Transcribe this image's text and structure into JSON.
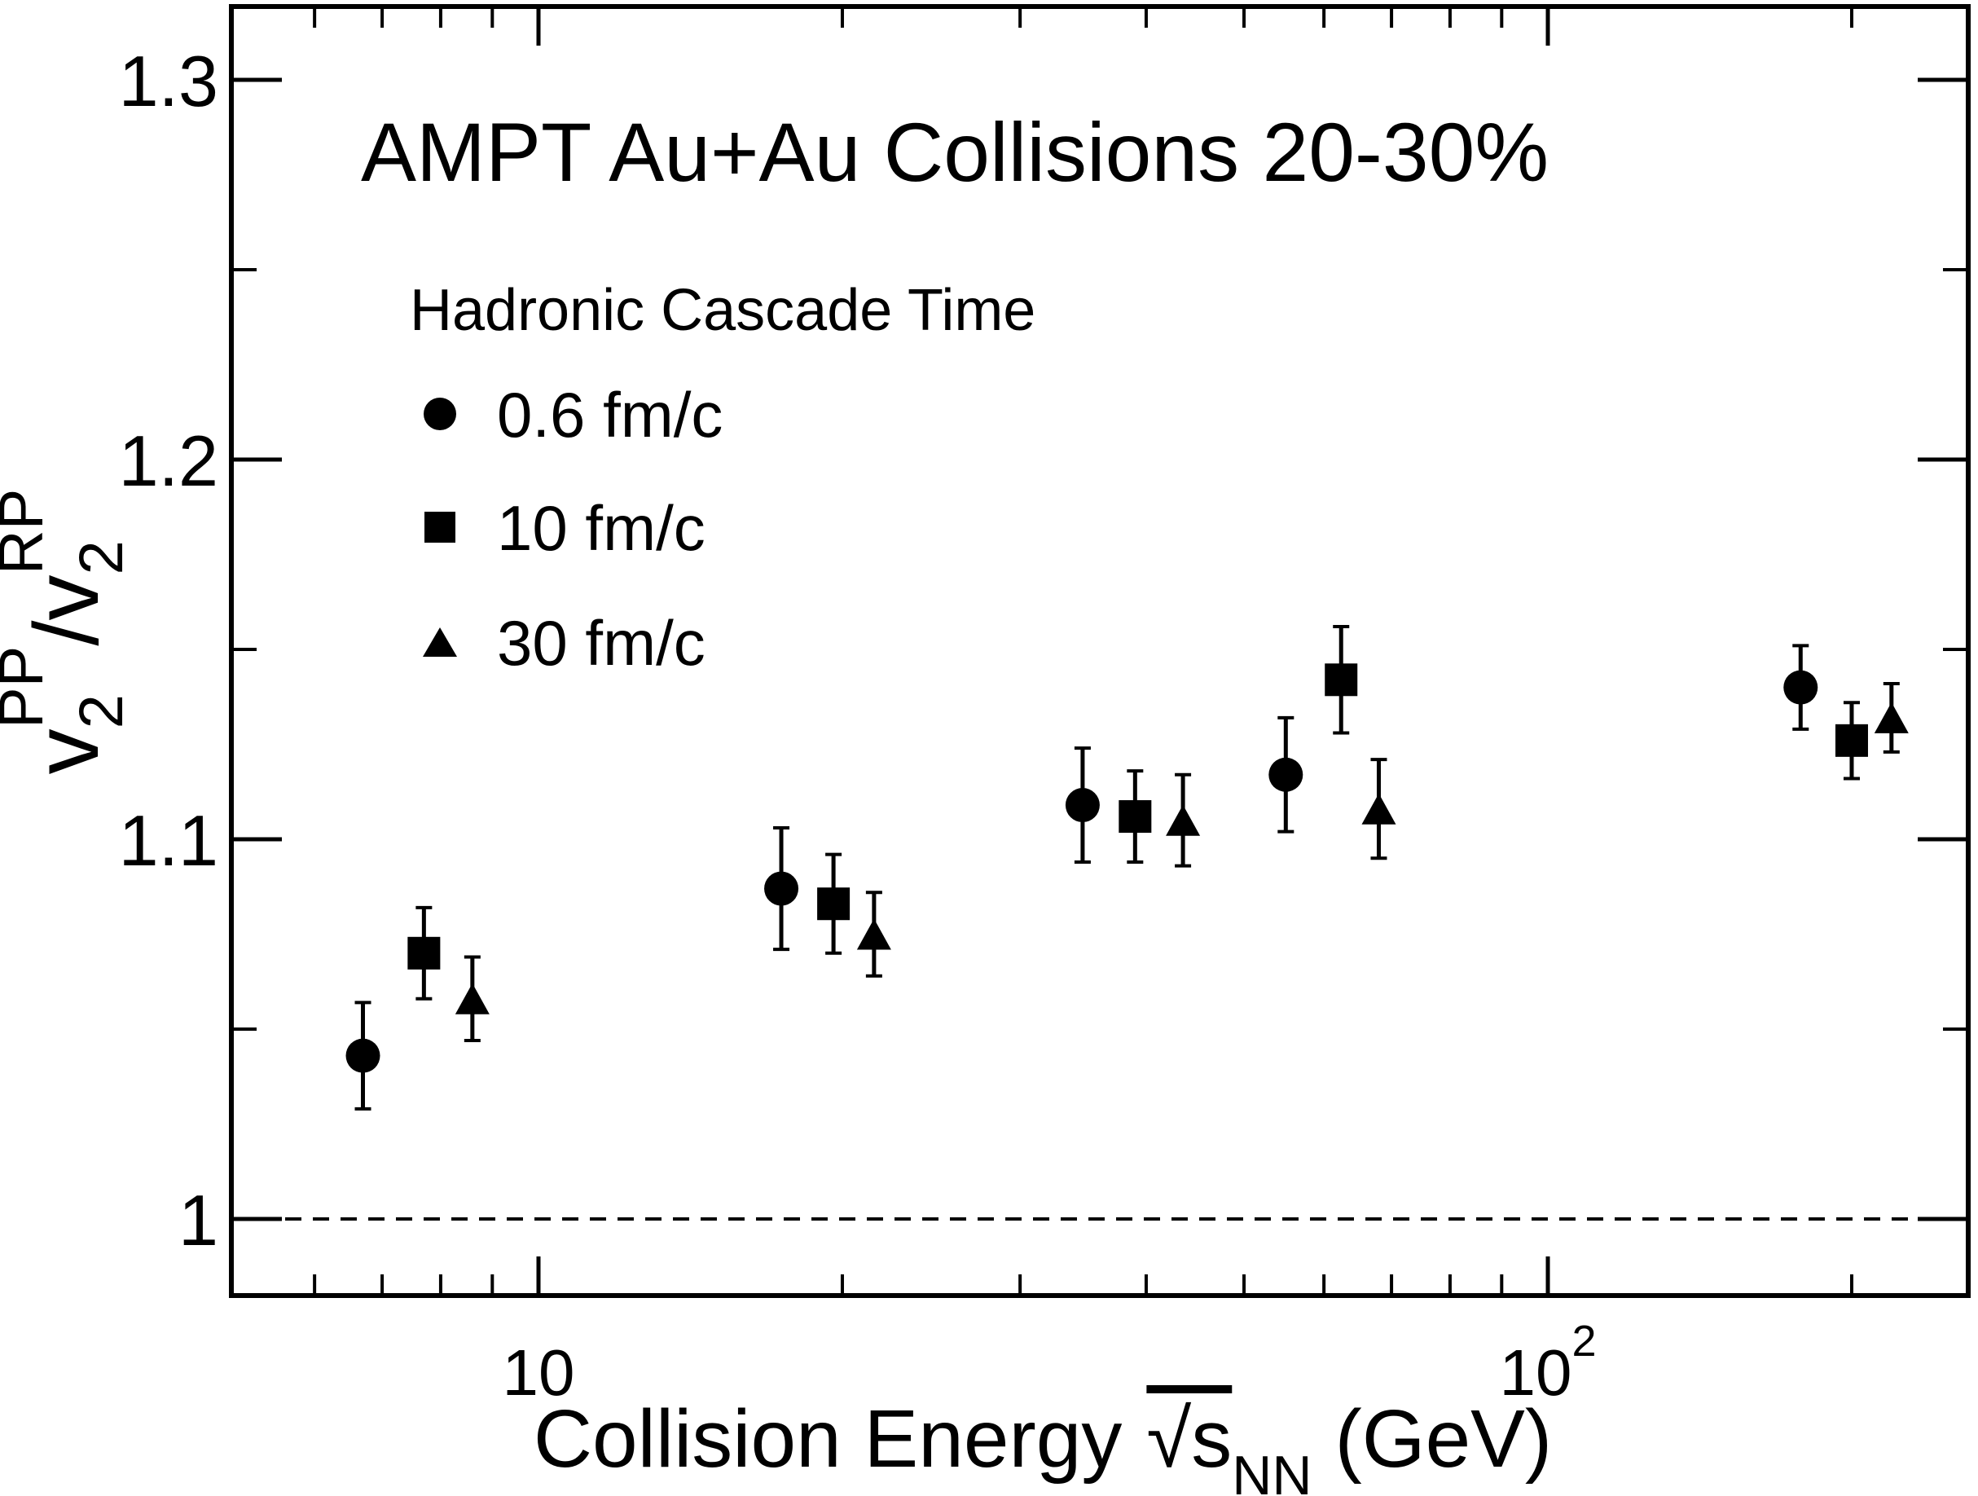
{
  "figure": {
    "title": "AMPT Au+Au Collisions 20-30%",
    "background_color": "#ffffff",
    "line_color": "#000000"
  },
  "legend": {
    "title": "Hadronic Cascade Time",
    "entries": [
      {
        "marker": "circle-icon",
        "label": "0.6 fm/c"
      },
      {
        "marker": "square-icon",
        "label": "10 fm/c"
      },
      {
        "marker": "triangle-icon",
        "label": "30 fm/c"
      }
    ]
  },
  "axes": {
    "x": {
      "title": "Collision Energy",
      "title_symbol": "√s",
      "title_sub": "NN",
      "title_unit": "(GeV)",
      "scale": "log",
      "range": [
        4.95,
        262
      ],
      "major_ticks": [
        {
          "value": 10,
          "label": "10",
          "exp": ""
        },
        {
          "value": 100,
          "label": "10",
          "exp": "2"
        }
      ],
      "minor_ticks": [
        6,
        7,
        8,
        9,
        20,
        30,
        40,
        50,
        60,
        70,
        80,
        90,
        200
      ]
    },
    "y": {
      "title_parts": [
        "v",
        "2",
        "PP",
        "/v",
        "2",
        "RP"
      ],
      "scale": "linear",
      "range": [
        0.98,
        1.319
      ],
      "major_ticks": [
        {
          "value": 1.0,
          "label": "1"
        },
        {
          "value": 1.1,
          "label": "1.1"
        },
        {
          "value": 1.2,
          "label": "1.2"
        },
        {
          "value": 1.3,
          "label": "1.3"
        }
      ],
      "minor_ticks": [
        1.05,
        1.15,
        1.25
      ]
    }
  },
  "reference_line": {
    "y": 1.0,
    "style": "dashed"
  },
  "chart_data": {
    "type": "scatter",
    "title": "AMPT Au+Au Collisions 20-30%",
    "xlabel": "Collision Energy sqrt(s_NN) (GeV)",
    "ylabel": "v2^PP / v2^RP",
    "x_scale": "log",
    "xlim": [
      4.95,
      262
    ],
    "ylim": [
      0.98,
      1.319
    ],
    "grid": false,
    "legend_position": "upper-left-inside",
    "reference_line_y": 1.0,
    "energies_nominal": [
      7.7,
      19.6,
      39,
      62.4,
      200
    ],
    "series": [
      {
        "name": "0.6 fm/c",
        "marker": "circle",
        "x": [
          6.7,
          17.4,
          34.6,
          55.0,
          178
        ],
        "y": [
          1.043,
          1.087,
          1.109,
          1.117,
          1.14
        ],
        "yerr": [
          0.014,
          0.016,
          0.015,
          0.015,
          0.011
        ]
      },
      {
        "name": "10 fm/c",
        "marker": "square",
        "x": [
          7.7,
          19.6,
          39.0,
          62.4,
          200
        ],
        "y": [
          1.07,
          1.083,
          1.106,
          1.142,
          1.126
        ],
        "yerr": [
          0.012,
          0.013,
          0.012,
          0.014,
          0.01
        ]
      },
      {
        "name": "30 fm/c",
        "marker": "triangle",
        "x": [
          8.6,
          21.5,
          43.5,
          68.0,
          219
        ],
        "y": [
          1.058,
          1.075,
          1.105,
          1.108,
          1.132
        ],
        "yerr": [
          0.011,
          0.011,
          0.012,
          0.013,
          0.009
        ]
      }
    ]
  }
}
